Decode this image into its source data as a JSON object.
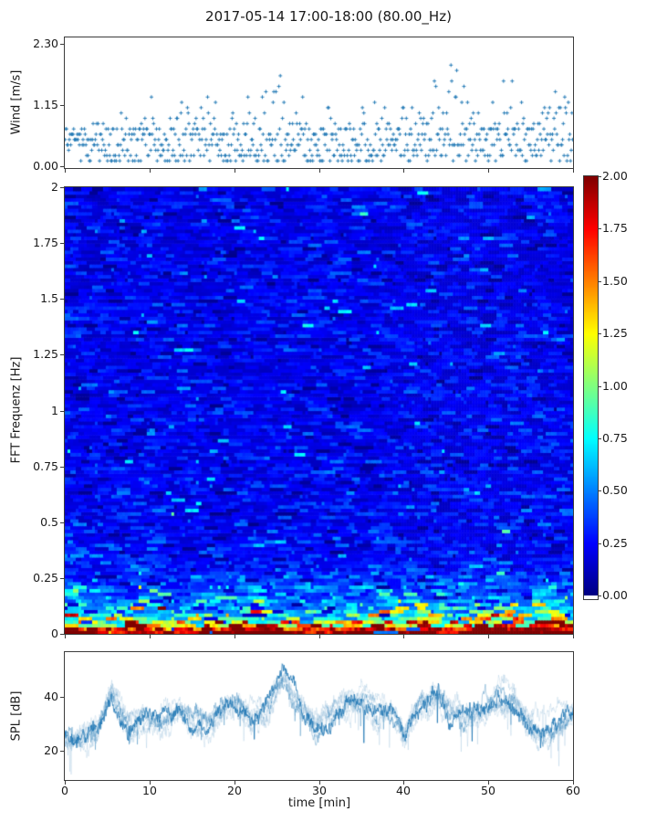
{
  "title": "2017-05-14 17:00-18:00 (80.00_Hz)",
  "xlabel": "time [min]",
  "xticks": {
    "values": [
      0,
      10,
      20,
      30,
      40,
      50,
      60
    ],
    "labels": [
      "0",
      "10",
      "20",
      "30",
      "40",
      "50",
      "60"
    ]
  },
  "colors": {
    "series_blue": "#1f77b4",
    "text": "#1a1a1a",
    "spine": "#3c3c3c"
  },
  "seed": 20170514,
  "chart_data": [
    {
      "id": "wind",
      "type": "scatter",
      "ylabel": "Wind [m/s]",
      "marker": "+",
      "color": "#1f77b4",
      "xlim": [
        0,
        60
      ],
      "ylim": [
        -0.035,
        2.42
      ],
      "yticks": {
        "values": [
          0,
          1.15,
          2.3
        ],
        "labels": [
          "0.00",
          "1.15",
          "2.30"
        ]
      },
      "sample_step_min": 0.085,
      "quantize_step_ms": 0.1,
      "base_range": [
        0.08,
        0.7
      ],
      "gust_envelope": {
        "t": [
          0,
          3,
          6,
          8,
          9.5,
          11,
          13,
          15,
          17,
          19,
          21,
          23,
          24.5,
          26,
          28,
          30,
          32,
          34,
          36,
          38,
          40,
          42,
          44,
          45.5,
          47,
          48.5,
          50,
          52,
          53.5,
          55,
          56.5,
          58,
          59.5,
          60
        ],
        "amp": [
          0.35,
          0.45,
          0.5,
          0.4,
          0.75,
          0.7,
          0.55,
          0.5,
          0.7,
          0.6,
          0.8,
          1.1,
          1.35,
          1.3,
          0.9,
          0.5,
          0.75,
          0.9,
          0.7,
          0.75,
          0.65,
          0.7,
          1.3,
          1.6,
          1.2,
          1.05,
          0.9,
          1.25,
          1.35,
          0.8,
          1.0,
          1.2,
          0.9,
          0.7
        ]
      }
    },
    {
      "id": "spectrogram",
      "type": "heatmap",
      "ylabel": "FFT Frequenz [Hz]",
      "colormap": "jet",
      "clim": [
        0,
        2
      ],
      "xlim": [
        0,
        60
      ],
      "ylim": [
        0,
        2
      ],
      "yticks": {
        "values": [
          0,
          0.25,
          0.5,
          0.75,
          1,
          1.25,
          1.5,
          1.75,
          2
        ],
        "labels": [
          "0",
          "0.25",
          "0.5",
          "0.75",
          "1",
          "1.25",
          "1.5",
          "1.75",
          "2"
        ]
      },
      "grid": {
        "rows": 128,
        "cols": 186
      },
      "freq_profile": {
        "f": [
          0,
          0.02,
          0.04,
          0.07,
          0.12,
          0.2,
          0.3,
          0.5,
          1.0,
          2.0
        ],
        "mean": [
          1.95,
          1.75,
          1.25,
          0.85,
          0.55,
          0.38,
          0.27,
          0.23,
          0.22,
          0.21
        ]
      },
      "time_modulation": {
        "t": [
          0,
          2,
          4,
          7,
          10,
          13,
          16,
          19,
          22,
          25,
          28,
          31,
          34,
          37,
          40,
          43,
          46,
          49,
          52,
          55,
          58,
          60
        ],
        "m": [
          1.3,
          1.25,
          0.9,
          0.95,
          1.1,
          0.95,
          1.0,
          1.15,
          1.3,
          1.25,
          0.9,
          1.0,
          1.1,
          1.0,
          1.2,
          1.15,
          0.95,
          1.1,
          1.25,
          1.2,
          1.3,
          1.25
        ]
      }
    },
    {
      "id": "spl",
      "type": "line",
      "ylabel": "SPL [dB]",
      "color": "#1f77b4",
      "xlim": [
        0,
        60
      ],
      "ylim": [
        9.2,
        56.6
      ],
      "yticks": {
        "values": [
          20,
          40
        ],
        "labels": [
          "20",
          "40"
        ]
      },
      "envelope": {
        "t": [
          0,
          1,
          2.5,
          4,
          5.5,
          6.5,
          7.5,
          9.5,
          11,
          12,
          13.5,
          15,
          17,
          19,
          20.5,
          22,
          23.5,
          26,
          27.5,
          29.5,
          31,
          33,
          35,
          37,
          38.5,
          40,
          42,
          44,
          45.5,
          47.5,
          49,
          51.5,
          53,
          55,
          56.5,
          58,
          59,
          60
        ],
        "spl": [
          25,
          24,
          24.5,
          30,
          43,
          36,
          28.5,
          32,
          29,
          30,
          34.5,
          30,
          30.5,
          35.5,
          36.5,
          32,
          33,
          47,
          36,
          28,
          32,
          36.5,
          38.5,
          34.5,
          35,
          27.5,
          38,
          39.5,
          34,
          30.5,
          33,
          40,
          39.5,
          30,
          28.5,
          30.5,
          32,
          35
        ]
      }
    }
  ],
  "colorbar": {
    "colormap": "jet",
    "clim": [
      0,
      2
    ],
    "tick_values": [
      2,
      1.75,
      1.5,
      1.25,
      1,
      0.75,
      0.5,
      0.25,
      0
    ],
    "tick_labels": [
      "2.00",
      "1.75",
      "1.50",
      "1.25",
      "1.00",
      "0.75",
      "0.50",
      "0.25",
      "0.00"
    ]
  }
}
